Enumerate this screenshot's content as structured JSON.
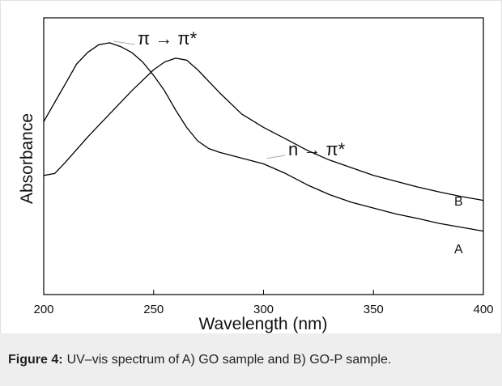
{
  "chart_data": {
    "type": "line",
    "title": "",
    "xlabel": "Wavelength (nm)",
    "ylabel": "Absorbance",
    "xlim": [
      200,
      400
    ],
    "xticks": [
      200,
      250,
      300,
      350,
      400
    ],
    "yticks": [],
    "grid": false,
    "series": [
      {
        "name": "A",
        "color": "#000000",
        "points": [
          [
            200,
            0.8
          ],
          [
            205,
            0.85
          ],
          [
            210,
            0.9
          ],
          [
            215,
            0.95
          ],
          [
            220,
            0.98
          ],
          [
            225,
            1.0
          ],
          [
            230,
            1.005
          ],
          [
            235,
            0.995
          ],
          [
            240,
            0.98
          ],
          [
            245,
            0.955
          ],
          [
            250,
            0.92
          ],
          [
            255,
            0.88
          ],
          [
            260,
            0.83
          ],
          [
            265,
            0.785
          ],
          [
            270,
            0.75
          ],
          [
            275,
            0.73
          ],
          [
            280,
            0.72
          ],
          [
            290,
            0.705
          ],
          [
            300,
            0.69
          ],
          [
            310,
            0.665
          ],
          [
            320,
            0.635
          ],
          [
            330,
            0.61
          ],
          [
            340,
            0.59
          ],
          [
            350,
            0.575
          ],
          [
            360,
            0.56
          ],
          [
            370,
            0.548
          ],
          [
            380,
            0.535
          ],
          [
            390,
            0.525
          ],
          [
            400,
            0.515
          ]
        ]
      },
      {
        "name": "B",
        "color": "#000000",
        "points": [
          [
            200,
            0.66
          ],
          [
            205,
            0.665
          ],
          [
            210,
            0.695
          ],
          [
            220,
            0.76
          ],
          [
            230,
            0.82
          ],
          [
            240,
            0.88
          ],
          [
            250,
            0.935
          ],
          [
            255,
            0.955
          ],
          [
            260,
            0.965
          ],
          [
            265,
            0.96
          ],
          [
            270,
            0.935
          ],
          [
            280,
            0.875
          ],
          [
            290,
            0.82
          ],
          [
            300,
            0.785
          ],
          [
            310,
            0.755
          ],
          [
            320,
            0.725
          ],
          [
            330,
            0.7
          ],
          [
            340,
            0.68
          ],
          [
            350,
            0.66
          ],
          [
            360,
            0.645
          ],
          [
            370,
            0.63
          ],
          [
            380,
            0.617
          ],
          [
            390,
            0.605
          ],
          [
            400,
            0.595
          ]
        ]
      }
    ],
    "annotations": [
      {
        "text": "π → π*",
        "x": 231,
        "y": 1.005
      },
      {
        "text": "n → π*",
        "x": 300,
        "y": 0.7
      }
    ]
  },
  "caption": {
    "label": "Figure 4:",
    "text": "UV–vis spectrum of A) GO sample and B) GO-P sample."
  }
}
